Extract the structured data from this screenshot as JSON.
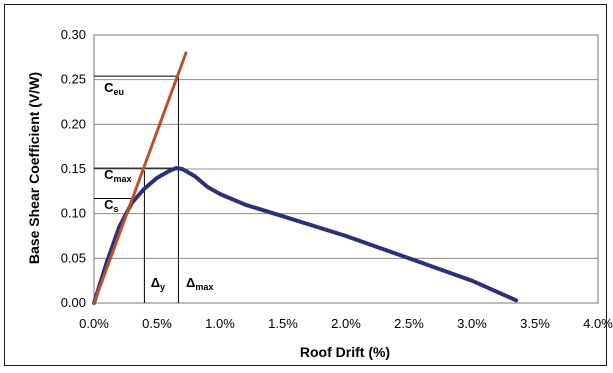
{
  "chart_data": {
    "type": "line",
    "xlabel": "Roof Drift (%)",
    "ylabel": "Base Shear Coefficient (V/W)",
    "xlim": [
      0,
      4
    ],
    "ylim": [
      0,
      0.3
    ],
    "x_ticks": [
      0,
      0.5,
      1,
      1.5,
      2,
      2.5,
      3,
      3.5,
      4
    ],
    "x_tick_labels": [
      "0.0%",
      "0.5%",
      "1.0%",
      "1.5%",
      "2.0%",
      "2.5%",
      "3.0%",
      "3.5%",
      "4.0%"
    ],
    "y_ticks": [
      0,
      0.05,
      0.1,
      0.15,
      0.2,
      0.25,
      0.3
    ],
    "y_tick_labels": [
      "0.00",
      "0.05",
      "0.10",
      "0.15",
      "0.20",
      "0.25",
      "0.30"
    ],
    "grid": "horizontal",
    "series": [
      {
        "color": "#2e2f7a",
        "x": [
          0,
          0.1,
          0.2,
          0.3,
          0.4,
          0.5,
          0.6,
          0.65,
          0.7,
          0.8,
          0.9,
          1.0,
          1.2,
          1.5,
          2.0,
          2.5,
          3.0,
          3.35
        ],
        "y": [
          0,
          0.045,
          0.085,
          0.112,
          0.128,
          0.14,
          0.148,
          0.151,
          0.15,
          0.142,
          0.13,
          0.122,
          0.11,
          0.097,
          0.075,
          0.05,
          0.025,
          0.003
        ]
      },
      {
        "color": "#b5532a",
        "x": [
          0,
          0.73
        ],
        "y": [
          0,
          0.28
        ]
      }
    ],
    "reference_lines": [
      {
        "label": "C",
        "sub": "eu",
        "y": 0.254,
        "x_end": 0.67,
        "label_x": 0.08,
        "label_y": 0.236
      },
      {
        "label": "C",
        "sub": "max",
        "y": 0.151,
        "x_end": 0.67,
        "label_x": 0.08,
        "label_y": 0.139
      },
      {
        "label": "C",
        "sub": "s",
        "y": 0.117,
        "x_end": 0.3,
        "label_x": 0.08,
        "label_y": 0.105
      },
      {
        "label": "Δ",
        "sub": "y",
        "x": 0.4,
        "y_end": 0.148,
        "label_x": 0.45,
        "label_y": 0.018
      },
      {
        "label": "Δ",
        "sub": "max",
        "x": 0.67,
        "y_end": 0.254,
        "label_x": 0.73,
        "label_y": 0.018
      }
    ]
  }
}
